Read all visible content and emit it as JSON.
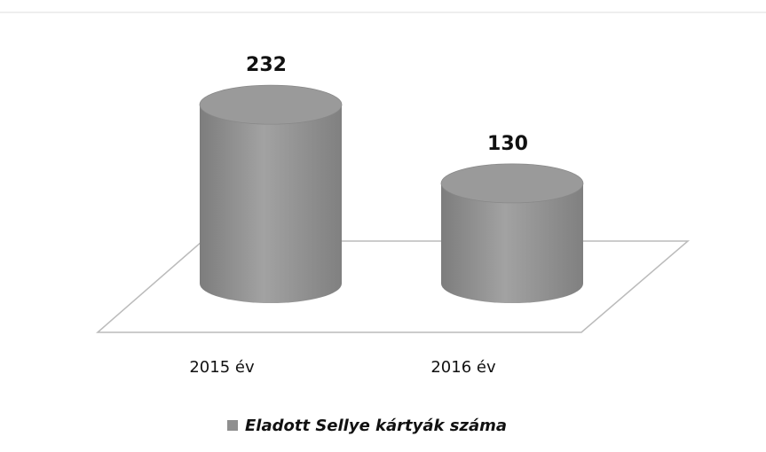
{
  "chart_data": {
    "type": "cylinder",
    "categories": [
      "2015 év",
      "2016 év"
    ],
    "series": [
      {
        "name": "Eladott Sellye kártyák száma",
        "color": "#8f8f8f",
        "values": [
          232,
          130
        ]
      }
    ]
  }
}
